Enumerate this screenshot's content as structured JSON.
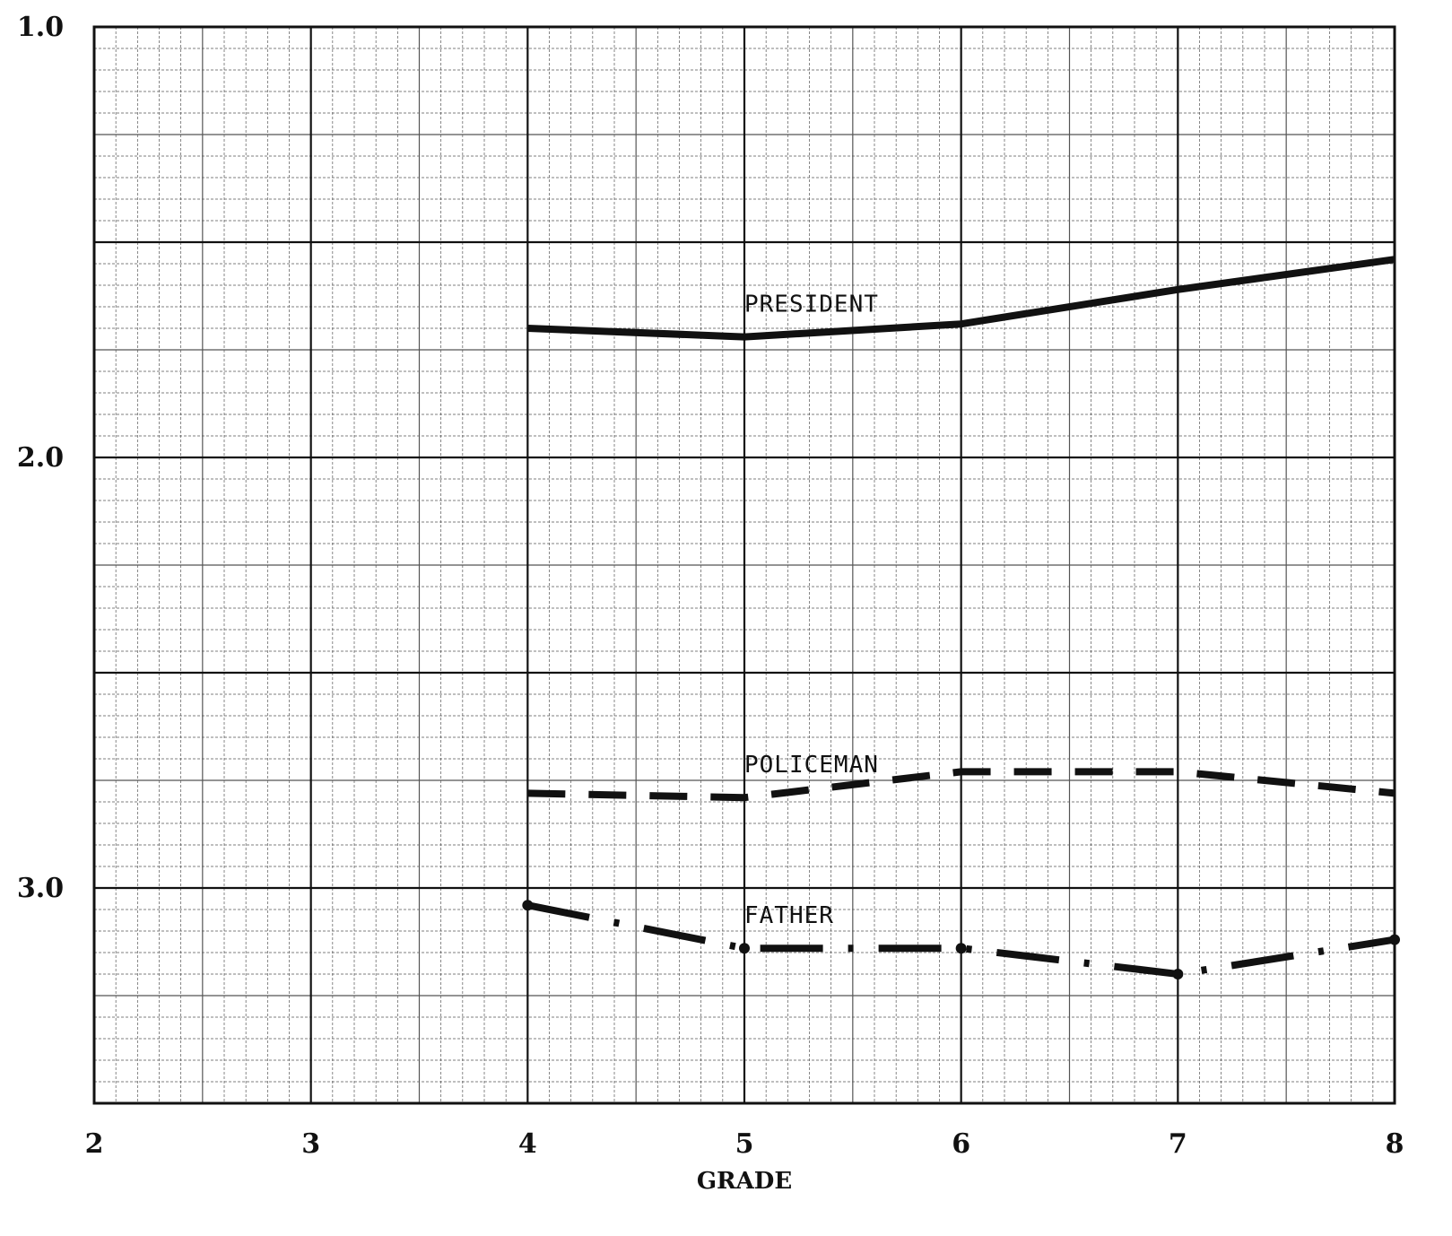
{
  "chart_data": {
    "type": "line",
    "title": "",
    "xlabel": "GRADE",
    "ylabel": "",
    "xlim": [
      2,
      8
    ],
    "ylim": [
      1.0,
      3.5
    ],
    "y_inverted": true,
    "grid": true,
    "legend": "inline labels",
    "x_ticks": [
      "2",
      "3",
      "4",
      "5",
      "6",
      "7",
      "8"
    ],
    "y_ticks": [
      "1.0",
      "2.0",
      "3.0"
    ],
    "series": [
      {
        "name": "PRESIDENT",
        "style": "solid",
        "color": "#111111",
        "x": [
          4,
          5,
          6,
          7,
          8
        ],
        "y": [
          1.7,
          1.72,
          1.69,
          1.61,
          1.54
        ]
      },
      {
        "name": "POLICEMAN",
        "style": "dashed",
        "color": "#111111",
        "x": [
          4,
          5,
          6,
          7,
          8
        ],
        "y": [
          2.78,
          2.79,
          2.73,
          2.73,
          2.78
        ]
      },
      {
        "name": "FATHER",
        "style": "dash-dot",
        "color": "#111111",
        "x": [
          4,
          5,
          6,
          7,
          8
        ],
        "y": [
          3.04,
          3.14,
          3.14,
          3.2,
          3.12
        ]
      }
    ]
  }
}
